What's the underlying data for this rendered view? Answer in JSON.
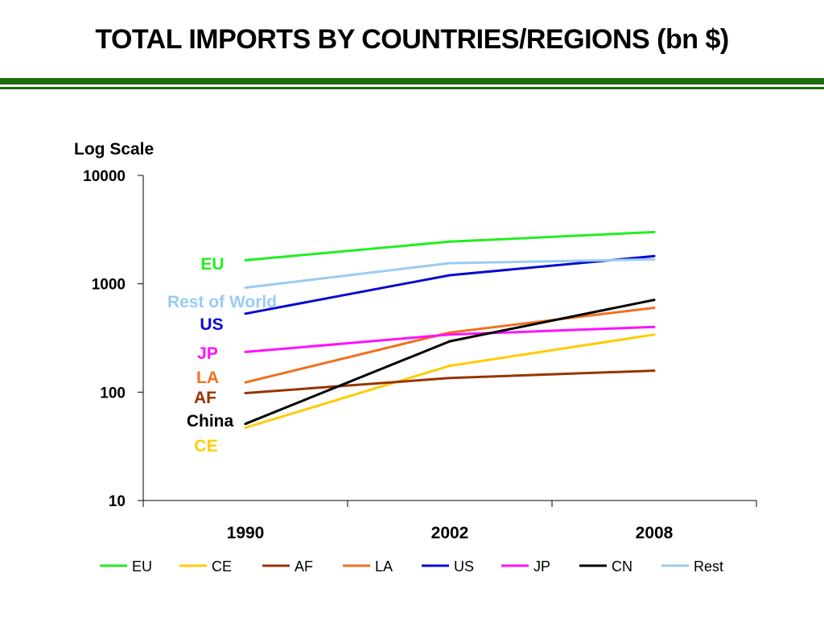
{
  "slide": {
    "title": "TOTAL IMPORTS BY COUNTRIES/REGIONS (bn $)"
  },
  "colors": {
    "header_rule": "#1f6b12"
  },
  "chart_data": {
    "type": "line",
    "title": "",
    "ylabel": "Log Scale",
    "xlabel": "",
    "yscale": "log",
    "ylim": [
      10,
      10000
    ],
    "yticks": [
      10,
      100,
      1000,
      10000
    ],
    "categories": [
      "1990",
      "2002",
      "2008"
    ],
    "grid": false,
    "legend_position": "bottom",
    "series": [
      {
        "name": "EU",
        "label": "EU",
        "color": "#22ee22",
        "values": [
          1650,
          2450,
          3000
        ]
      },
      {
        "name": "CE",
        "label": "CE",
        "color": "#ffcc00",
        "values": [
          47,
          175,
          340
        ]
      },
      {
        "name": "AF",
        "label": "AF",
        "color": "#993300",
        "values": [
          98,
          135,
          158
        ]
      },
      {
        "name": "LA",
        "label": "LA",
        "color": "#f07020",
        "values": [
          123,
          355,
          600
        ]
      },
      {
        "name": "US",
        "label": "US",
        "color": "#0a0ad0",
        "values": [
          530,
          1200,
          1800
        ]
      },
      {
        "name": "JP",
        "label": "JP",
        "color": "#ff10ff",
        "values": [
          235,
          340,
          400
        ]
      },
      {
        "name": "CN",
        "label": "China",
        "color": "#000000",
        "values": [
          51,
          295,
          710
        ]
      },
      {
        "name": "Rest",
        "label": "Rest of World",
        "color": "#99ccf2",
        "values": [
          920,
          1550,
          1680
        ]
      }
    ]
  }
}
